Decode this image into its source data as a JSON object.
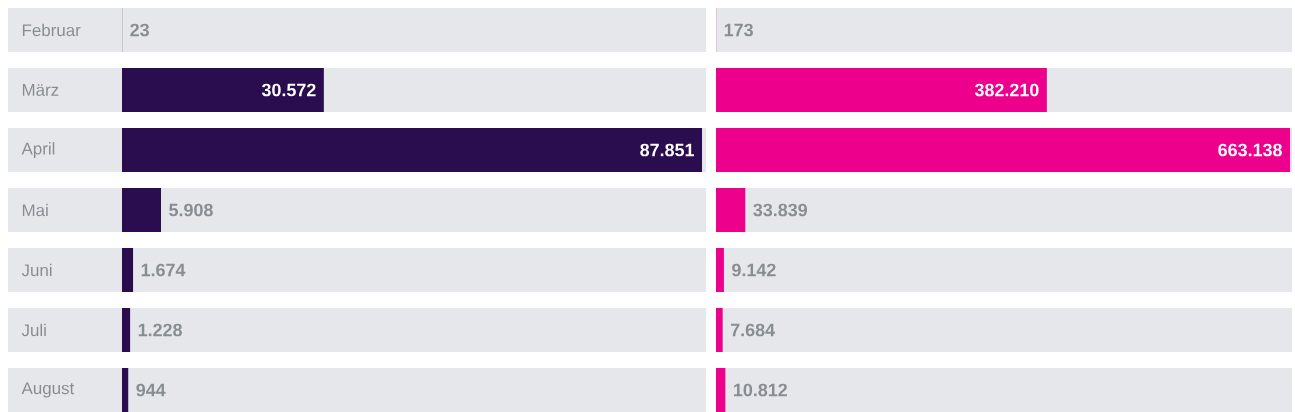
{
  "chart_data": [
    {
      "type": "bar",
      "orientation": "horizontal",
      "categories": [
        "Februar",
        "März",
        "April",
        "Mai",
        "Juni",
        "Juli",
        "August"
      ],
      "values": [
        23,
        30572,
        87851,
        5908,
        1674,
        1228,
        944
      ],
      "value_labels": [
        "23",
        "30.572",
        "87.851",
        "5.908",
        "1.674",
        "1.228",
        "944"
      ],
      "color": "#290d4f",
      "tick_labels": "y"
    },
    {
      "type": "bar",
      "orientation": "horizontal",
      "categories": [
        null,
        null,
        null,
        null,
        null,
        null,
        null
      ],
      "values": [
        173,
        382210,
        663138,
        33839,
        9142,
        7684,
        10812
      ],
      "value_labels": [
        "173",
        "382.210",
        "663.138",
        "33.839",
        "9.142",
        "7.684",
        "10.812"
      ],
      "color": "#ec008c",
      "tick_labels": false
    }
  ]
}
